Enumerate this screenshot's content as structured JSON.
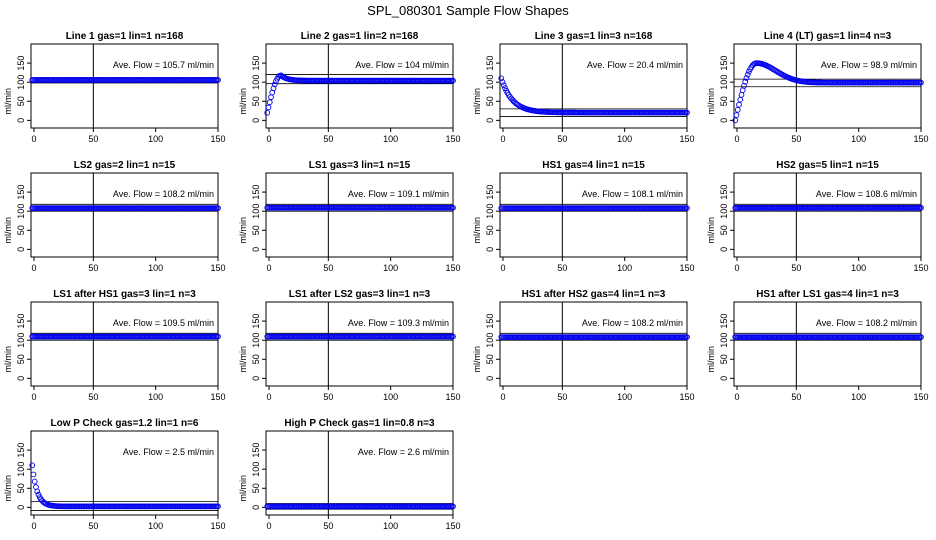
{
  "figure": {
    "title": "SPL_080301  Sample Flow Shapes"
  },
  "chart_data": [
    {
      "type": "scatter",
      "title": "Line 1 gas=1 lin=1 n=168",
      "annotation": "Ave. Flow =  105.7  ml/min",
      "ylabel": "ml/min",
      "xlim": [
        0,
        150
      ],
      "ylim": [
        -20,
        200
      ],
      "xticks": [
        0,
        50,
        100,
        150
      ],
      "yticks": [
        0,
        50,
        100,
        150
      ],
      "vline": 50,
      "hlines": [
        112,
        98
      ],
      "shape": {
        "kind": "flat",
        "level": 105.7
      }
    },
    {
      "type": "scatter",
      "title": "Line 2 gas=1 lin=2 n=168",
      "annotation": "Ave. Flow =  104  ml/min",
      "ylabel": "ml/min",
      "xlim": [
        0,
        150
      ],
      "ylim": [
        -20,
        200
      ],
      "xticks": [
        0,
        50,
        100,
        150
      ],
      "yticks": [
        0,
        50,
        100,
        150
      ],
      "vline": 50,
      "hlines": [
        120,
        96
      ],
      "shape": {
        "kind": "rise",
        "start": 20,
        "peak": 118,
        "peak_x": 12,
        "level": 104
      }
    },
    {
      "type": "scatter",
      "title": "Line 3 gas=1 lin=3 n=168",
      "annotation": "Ave. Flow =  20.4  ml/min",
      "ylabel": "ml/min",
      "xlim": [
        0,
        150
      ],
      "ylim": [
        -20,
        200
      ],
      "xticks": [
        0,
        50,
        100,
        150
      ],
      "yticks": [
        0,
        50,
        100,
        150
      ],
      "vline": 50,
      "hlines": [
        30,
        10
      ],
      "shape": {
        "kind": "decay",
        "start": 110,
        "level": 20.4,
        "tau": 9
      }
    },
    {
      "type": "scatter",
      "title": "Line 4 (LT) gas=1 lin=4 n=3",
      "annotation": "Ave. Flow =  98.9  ml/min",
      "ylabel": "ml/min",
      "xlim": [
        0,
        150
      ],
      "ylim": [
        -20,
        200
      ],
      "xticks": [
        0,
        50,
        100,
        150
      ],
      "yticks": [
        0,
        50,
        100,
        150
      ],
      "vline": 50,
      "hlines": [
        108,
        88
      ],
      "shape": {
        "kind": "hump",
        "start": 0,
        "peak": 150,
        "peak_x": 18,
        "level": 98.9
      }
    },
    {
      "type": "scatter",
      "title": "LS2 gas=2 lin=1 n=15",
      "annotation": "Ave. Flow =  108.2  ml/min",
      "ylabel": "ml/min",
      "xlim": [
        0,
        150
      ],
      "ylim": [
        -20,
        200
      ],
      "xticks": [
        0,
        50,
        100,
        150
      ],
      "yticks": [
        0,
        50,
        100,
        150
      ],
      "vline": 50,
      "hlines": [
        118,
        100
      ],
      "shape": {
        "kind": "flat",
        "level": 108.2
      }
    },
    {
      "type": "scatter",
      "title": "LS1 gas=3 lin=1 n=15",
      "annotation": "Ave. Flow =  109.1  ml/min",
      "ylabel": "ml/min",
      "xlim": [
        0,
        150
      ],
      "ylim": [
        -20,
        200
      ],
      "xticks": [
        0,
        50,
        100,
        150
      ],
      "yticks": [
        0,
        50,
        100,
        150
      ],
      "vline": 50,
      "hlines": [
        118,
        100
      ],
      "shape": {
        "kind": "flat",
        "level": 109.1
      }
    },
    {
      "type": "scatter",
      "title": "HS1 gas=4 lin=1 n=15",
      "annotation": "Ave. Flow =  108.1  ml/min",
      "ylabel": "ml/min",
      "xlim": [
        0,
        150
      ],
      "ylim": [
        -20,
        200
      ],
      "xticks": [
        0,
        50,
        100,
        150
      ],
      "yticks": [
        0,
        50,
        100,
        150
      ],
      "vline": 50,
      "hlines": [
        118,
        100
      ],
      "shape": {
        "kind": "flat",
        "level": 108.1
      }
    },
    {
      "type": "scatter",
      "title": "HS2 gas=5 lin=1 n=15",
      "annotation": "Ave. Flow =  108.6  ml/min",
      "ylabel": "ml/min",
      "xlim": [
        0,
        150
      ],
      "ylim": [
        -20,
        200
      ],
      "xticks": [
        0,
        50,
        100,
        150
      ],
      "yticks": [
        0,
        50,
        100,
        150
      ],
      "vline": 50,
      "hlines": [
        118,
        100
      ],
      "shape": {
        "kind": "flat",
        "level": 108.6
      }
    },
    {
      "type": "scatter",
      "title": "LS1 after HS1 gas=3 lin=1 n=3",
      "annotation": "Ave. Flow =  109.5  ml/min",
      "ylabel": "ml/min",
      "xlim": [
        0,
        150
      ],
      "ylim": [
        -20,
        200
      ],
      "xticks": [
        0,
        50,
        100,
        150
      ],
      "yticks": [
        0,
        50,
        100,
        150
      ],
      "vline": 50,
      "hlines": [
        118,
        100
      ],
      "shape": {
        "kind": "flat",
        "level": 109.5
      }
    },
    {
      "type": "scatter",
      "title": "LS1 after LS2 gas=3 lin=1 n=3",
      "annotation": "Ave. Flow =  109.3  ml/min",
      "ylabel": "ml/min",
      "xlim": [
        0,
        150
      ],
      "ylim": [
        -20,
        200
      ],
      "xticks": [
        0,
        50,
        100,
        150
      ],
      "yticks": [
        0,
        50,
        100,
        150
      ],
      "vline": 50,
      "hlines": [
        118,
        100
      ],
      "shape": {
        "kind": "flat",
        "level": 109.3
      }
    },
    {
      "type": "scatter",
      "title": "HS1 after HS2 gas=4 lin=1 n=3",
      "annotation": "Ave. Flow =  108.2  ml/min",
      "ylabel": "ml/min",
      "xlim": [
        0,
        150
      ],
      "ylim": [
        -20,
        200
      ],
      "xticks": [
        0,
        50,
        100,
        150
      ],
      "yticks": [
        0,
        50,
        100,
        150
      ],
      "vline": 50,
      "hlines": [
        118,
        100
      ],
      "shape": {
        "kind": "flat",
        "level": 108.2
      }
    },
    {
      "type": "scatter",
      "title": "HS1 after LS1 gas=4 lin=1 n=3",
      "annotation": "Ave. Flow =  108.2  ml/min",
      "ylabel": "ml/min",
      "xlim": [
        0,
        150
      ],
      "ylim": [
        -20,
        200
      ],
      "xticks": [
        0,
        50,
        100,
        150
      ],
      "yticks": [
        0,
        50,
        100,
        150
      ],
      "vline": 50,
      "hlines": [
        118,
        100
      ],
      "shape": {
        "kind": "flat",
        "level": 108.2
      }
    },
    {
      "type": "scatter",
      "title": "Low P Check gas=1.2 lin=1 n=6",
      "annotation": "Ave. Flow =  2.5  ml/min",
      "ylabel": "ml/min",
      "xlim": [
        0,
        150
      ],
      "ylim": [
        -20,
        200
      ],
      "xticks": [
        0,
        50,
        100,
        150
      ],
      "yticks": [
        0,
        50,
        100,
        150
      ],
      "vline": 50,
      "hlines": [
        15,
        -8
      ],
      "shape": {
        "kind": "decay",
        "start": 110,
        "level": 2.5,
        "tau": 4
      }
    },
    {
      "type": "scatter",
      "title": "High P Check gas=1 lin=0.8 n=3",
      "annotation": "Ave. Flow =  2.6  ml/min",
      "ylabel": "ml/min",
      "xlim": [
        0,
        150
      ],
      "ylim": [
        -20,
        200
      ],
      "xticks": [
        0,
        50,
        100,
        150
      ],
      "yticks": [
        0,
        50,
        100,
        150
      ],
      "vline": 50,
      "hlines": [
        10,
        -5
      ],
      "shape": {
        "kind": "flat",
        "level": 2.6
      }
    }
  ]
}
